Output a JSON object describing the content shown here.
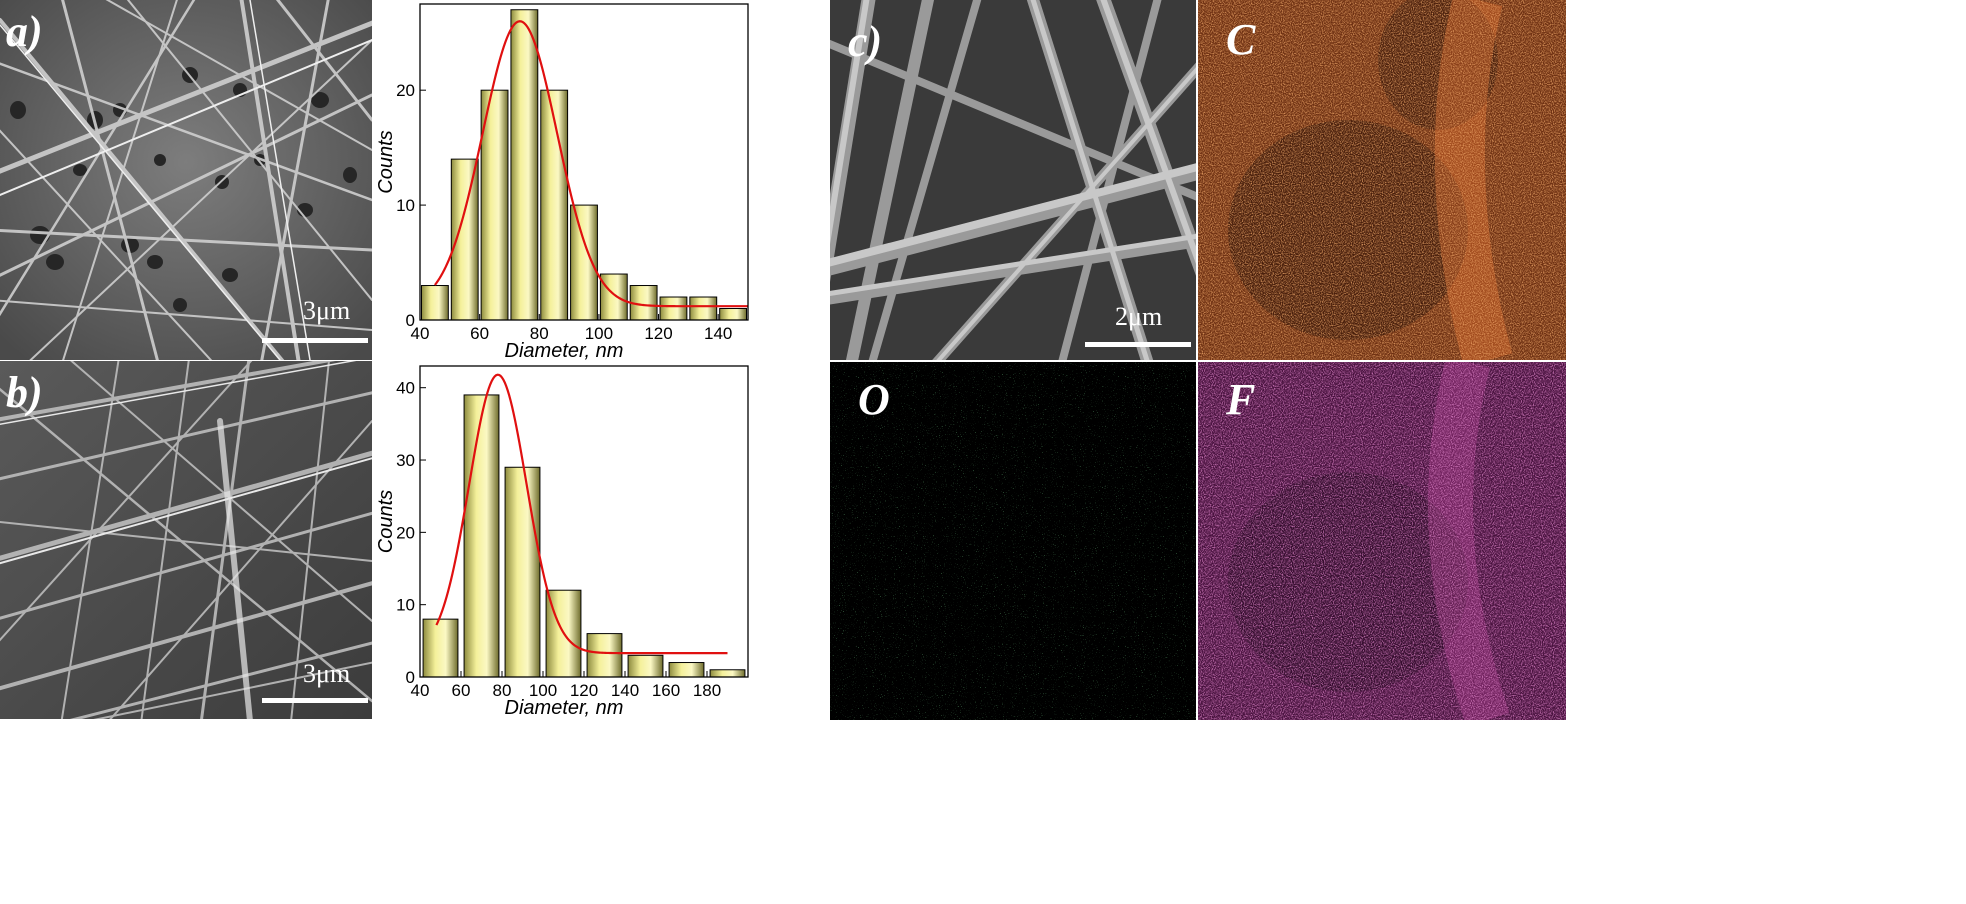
{
  "panels": {
    "a": {
      "label": "a)",
      "scale_text": "3μm"
    },
    "b": {
      "label": "b)",
      "scale_text": "3μm"
    },
    "c": {
      "label": "c)",
      "scale_text": "2μm"
    },
    "map_C": {
      "label": "C",
      "color": "#e8692a"
    },
    "map_O": {
      "label": "O",
      "color": "#3ddc5a"
    },
    "map_F": {
      "label": "F",
      "color": "#b8338f"
    }
  },
  "chart_data": [
    {
      "type": "bar",
      "xlabel": "Diameter, nm",
      "ylabel": "Counts",
      "x": [
        45,
        55,
        65,
        75,
        85,
        95,
        105,
        115,
        125,
        135,
        145
      ],
      "values": [
        3,
        14,
        20,
        27,
        20,
        10,
        4,
        3,
        2,
        2,
        1
      ],
      "bar_width": 9,
      "xlim": [
        40,
        150
      ],
      "ylim": [
        0,
        27.5
      ],
      "xticks": [
        40,
        60,
        80,
        100,
        120,
        140
      ],
      "yticks": [
        0,
        10,
        20
      ],
      "bar_color": "#f4f09a",
      "fit_color": "#e01010",
      "fit": {
        "type": "gaussian",
        "center": 73.5,
        "amplitude": 24.8,
        "sigma": 12.5,
        "baseline": 1.2,
        "x_range": [
          45,
          150
        ]
      }
    },
    {
      "type": "bar",
      "xlabel": "Diameter, nm",
      "ylabel": "Counts",
      "x": [
        50,
        70,
        90,
        110,
        130,
        150,
        170,
        190
      ],
      "values": [
        8,
        39,
        29,
        12,
        6,
        3,
        2,
        1
      ],
      "bar_width": 17,
      "xlim": [
        40,
        200
      ],
      "ylim": [
        0,
        43
      ],
      "xticks": [
        40,
        60,
        80,
        100,
        120,
        140,
        160,
        180
      ],
      "yticks": [
        0,
        10,
        20,
        30,
        40
      ],
      "bar_color": "#f4f09a",
      "fit_color": "#e01010",
      "fit": {
        "type": "gaussian",
        "center": 78,
        "amplitude": 38.5,
        "sigma": 14,
        "baseline": 3.3,
        "x_range": [
          48,
          190
        ]
      }
    }
  ]
}
